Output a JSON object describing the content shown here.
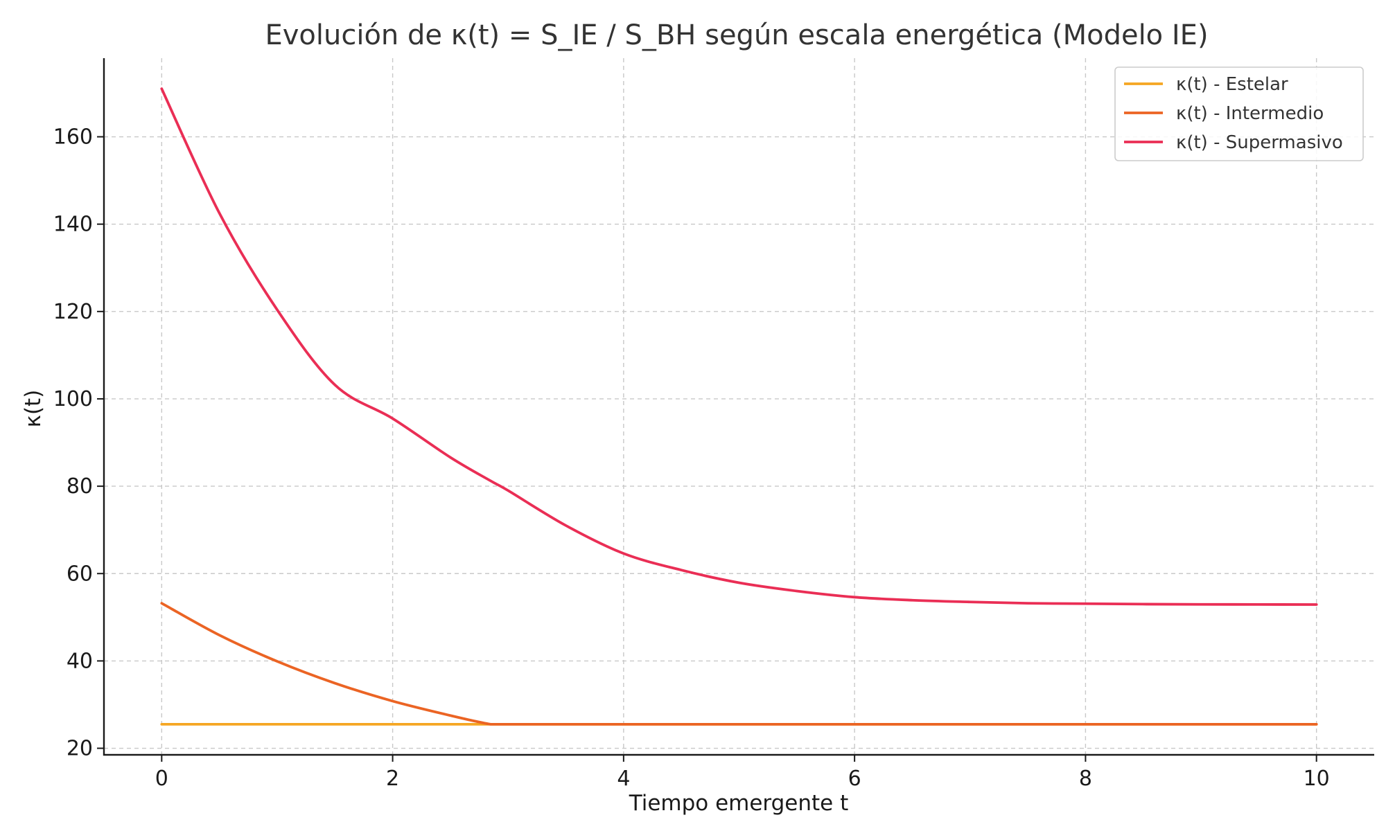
{
  "chart_data": {
    "type": "line",
    "title": "Evolución de κ(t) = S_IE / S_BH según escala energética (Modelo IE)",
    "xlabel": "Tiempo emergente t",
    "ylabel": "κ(t)",
    "xlim": [
      -0.5,
      10.5
    ],
    "ylim": [
      18.5,
      178
    ],
    "xticks": [
      0,
      2,
      4,
      6,
      8,
      10
    ],
    "yticks": [
      20,
      40,
      60,
      80,
      100,
      120,
      140,
      160
    ],
    "grid": true,
    "legend_position": "top-right",
    "x": [
      0,
      0.5,
      1,
      1.5,
      2,
      2.5,
      2.85,
      3,
      3.5,
      4,
      4.5,
      5,
      5.5,
      6,
      6.5,
      7,
      7.5,
      8,
      8.5,
      9,
      9.5,
      10
    ],
    "series": [
      {
        "name": "κ(t) - Estelar",
        "color": "#f5a623",
        "values": [
          25.5,
          25.5,
          25.5,
          25.5,
          25.5,
          25.5,
          25.5,
          25.5,
          25.5,
          25.5,
          25.5,
          25.5,
          25.5,
          25.5,
          25.5,
          25.5,
          25.5,
          25.5,
          25.5,
          25.5,
          25.5,
          25.5
        ]
      },
      {
        "name": "κ(t) - Intermedio",
        "color": "#eb6424",
        "values": [
          53.2,
          45.9,
          39.9,
          34.9,
          30.8,
          27.5,
          25.5,
          25.5,
          25.5,
          25.5,
          25.5,
          25.5,
          25.5,
          25.5,
          25.5,
          25.5,
          25.5,
          25.5,
          25.5,
          25.5,
          25.5,
          25.5
        ]
      },
      {
        "name": "κ(t) - Supermasivo",
        "color": "#ea2e55",
        "values": [
          171.0,
          142.5,
          120.4,
          103.2,
          95.5,
          86.6,
          81.2,
          79.0,
          71.0,
          64.6,
          60.8,
          57.9,
          56.0,
          54.6,
          53.9,
          53.5,
          53.2,
          53.1,
          53.0,
          52.95,
          52.92,
          52.9
        ]
      }
    ]
  }
}
